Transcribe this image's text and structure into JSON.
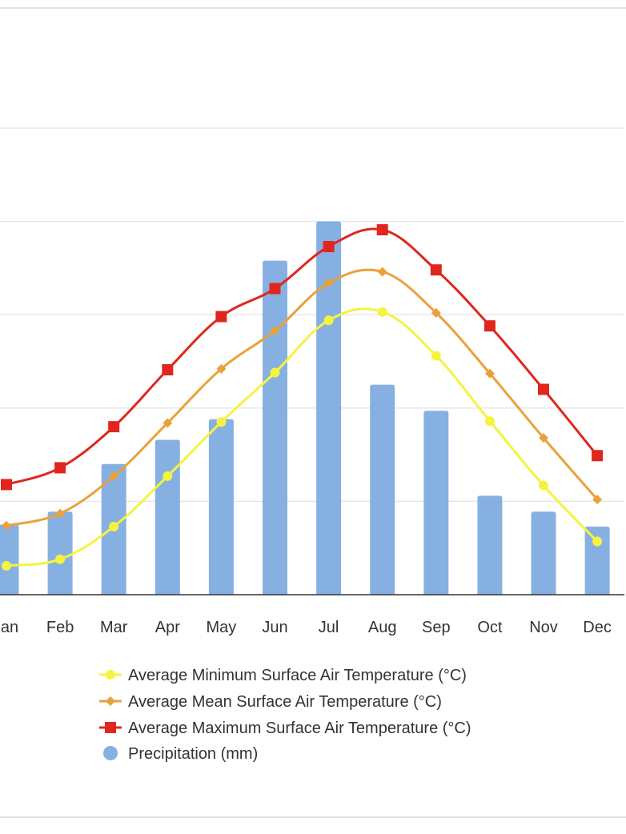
{
  "chart_data": {
    "type": "bar+line",
    "categories": [
      "Jan",
      "Feb",
      "Mar",
      "Apr",
      "May",
      "Jun",
      "Jul",
      "Aug",
      "Sep",
      "Oct",
      "Nov",
      "Dec"
    ],
    "x_tick_labels": [
      "an",
      "Feb",
      "Mar",
      "Apr",
      "May",
      "Jun",
      "Jul",
      "Aug",
      "Sep",
      "Oct",
      "Nov",
      "Dec"
    ],
    "ylim": [
      0,
      50
    ],
    "grid": true,
    "legend_position": "bottom",
    "series": [
      {
        "name": "Average Minimum Surface Air Temperature (°C)",
        "type": "line",
        "marker": "circle",
        "color": "#f4f440",
        "values": [
          3.1,
          3.8,
          7.3,
          12.7,
          18.5,
          23.8,
          29.4,
          30.3,
          25.6,
          18.6,
          11.7,
          5.7
        ]
      },
      {
        "name": "Average Mean Surface Air Temperature (°C)",
        "type": "line",
        "marker": "diamond",
        "color": "#e9a23b",
        "values": [
          7.4,
          8.7,
          12.7,
          18.4,
          24.2,
          28.3,
          33.4,
          34.6,
          30.2,
          23.7,
          16.8,
          10.2
        ]
      },
      {
        "name": "Average Maximum Surface Air Temperature (°C)",
        "type": "line",
        "marker": "square",
        "color": "#e0261e",
        "values": [
          11.8,
          13.6,
          18.0,
          24.1,
          29.8,
          32.8,
          37.3,
          39.1,
          34.8,
          28.8,
          22.0,
          14.9
        ]
      },
      {
        "name": "Precipitation (mm)",
        "type": "bar",
        "marker": "circle",
        "color": "#87b0e2",
        "values": [
          7.5,
          8.9,
          14.0,
          16.6,
          18.8,
          35.8,
          40.0,
          22.5,
          19.7,
          10.6,
          8.9,
          7.3
        ]
      }
    ]
  }
}
